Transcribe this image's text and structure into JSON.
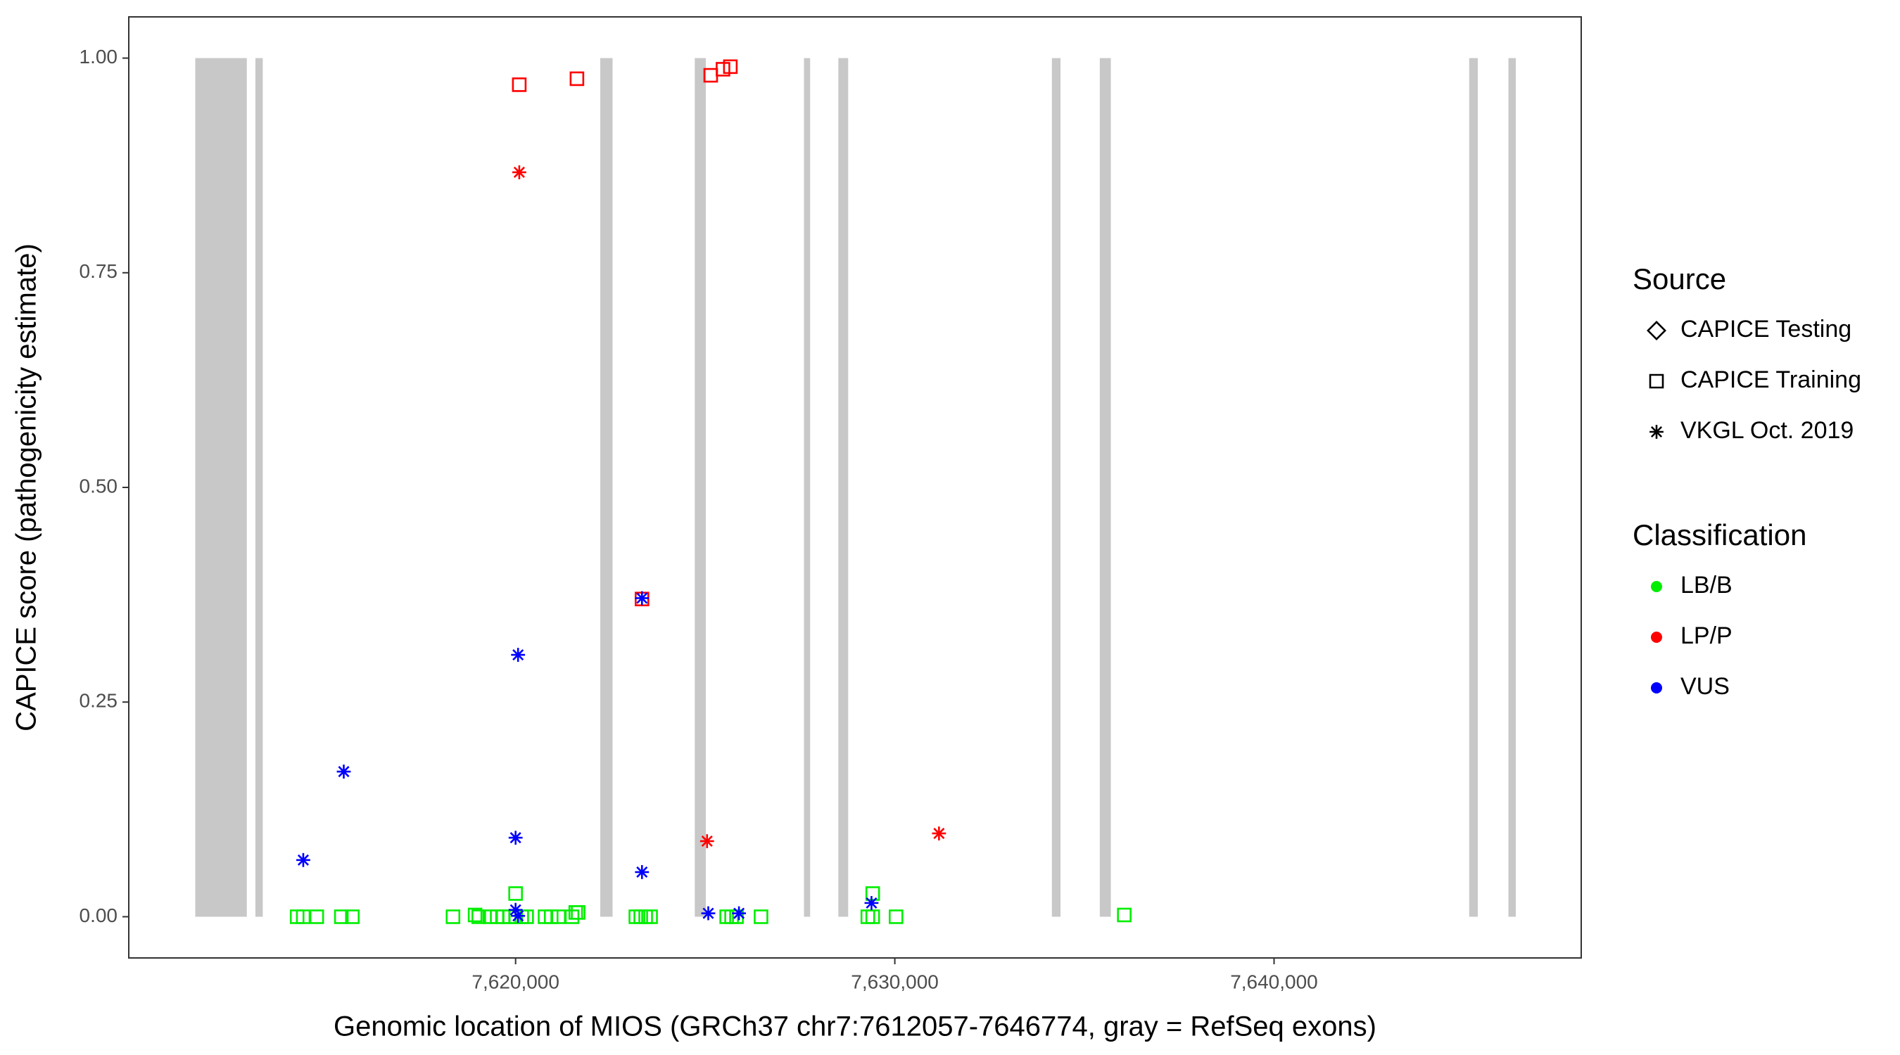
{
  "chart_data": {
    "type": "scatter",
    "x_label": "Genomic location of MIOS (GRCh37 chr7:7612057-7646774, gray = RefSeq exons)",
    "y_label": "CAPICE score (pathogenicity estimate)",
    "xlim": [
      7609800,
      7648100
    ],
    "ylim": [
      -0.048,
      1.048
    ],
    "xticks": [
      {
        "value": 7620000,
        "label": "7,620,000"
      },
      {
        "value": 7630000,
        "label": "7,630,000"
      },
      {
        "value": 7640000,
        "label": "7,640,000"
      }
    ],
    "yticks": [
      {
        "value": 0,
        "label": "0.00"
      },
      {
        "value": 0.25,
        "label": "0.25"
      },
      {
        "value": 0.5,
        "label": "0.50"
      },
      {
        "value": 0.75,
        "label": "0.75"
      },
      {
        "value": 1,
        "label": "1.00"
      }
    ],
    "exon_color": "#c8c8c8",
    "exons": [
      [
        7611553,
        7612913
      ],
      [
        7613139,
        7613333
      ],
      [
        7622233,
        7622557
      ],
      [
        7624725,
        7625016
      ],
      [
        7627605,
        7627767
      ],
      [
        7628511,
        7628770
      ],
      [
        7634142,
        7634369
      ],
      [
        7635405,
        7635696
      ],
      [
        7645146,
        7645372
      ],
      [
        7646181,
        7646375
      ]
    ],
    "legend_source": {
      "title": "Source",
      "items": [
        {
          "label": "CAPICE Testing",
          "shape": "diamond"
        },
        {
          "label": "CAPICE Training",
          "shape": "square"
        },
        {
          "label": "VKGL Oct. 2019",
          "shape": "asterisk"
        }
      ]
    },
    "legend_classification": {
      "title": "Classification",
      "items": [
        {
          "label": "LB/B",
          "color": "#00ee00"
        },
        {
          "label": "LP/P",
          "color": "#ff0000"
        },
        {
          "label": "VUS",
          "color": "#0000ff"
        }
      ]
    },
    "series": [
      {
        "source": "CAPICE Training",
        "classification": "LB/B",
        "x": [
          7614240,
          7614401,
          7614757,
          7615405,
          7615696,
          7618350,
          7618932,
          7619029,
          7619320,
          7619515,
          7619676,
          7619838,
          7620000,
          7620162,
          7620291,
          7620777,
          7620939,
          7621133,
          7621489,
          7621586,
          7621650,
          7623171,
          7623301,
          7623430,
          7623560,
          7625566,
          7625696,
          7625825,
          7626472,
          7629288,
          7629417,
          7630032,
          7636051,
          7620000,
          7629417
        ],
        "values": [
          0,
          0,
          0,
          0,
          0,
          0,
          0.002,
          0,
          0,
          0,
          0,
          0,
          0,
          0,
          0,
          0,
          0,
          0,
          0,
          0.005,
          0.005,
          0,
          0,
          0,
          0,
          0,
          0,
          0,
          0,
          0,
          0,
          0,
          0.002,
          0.027,
          0.027
        ]
      },
      {
        "source": "CAPICE Training",
        "classification": "LP/P",
        "x": [
          7620097,
          7621618,
          7623333,
          7625146,
          7625469,
          7625663
        ],
        "values": [
          0.969,
          0.976,
          0.37,
          0.98,
          0.987,
          0.99
        ]
      },
      {
        "source": "VKGL Oct. 2019",
        "classification": "LP/P",
        "x": [
          7620097,
          7625049,
          7631165
        ],
        "values": [
          0.867,
          0.088,
          0.097
        ]
      },
      {
        "source": "VKGL Oct. 2019",
        "classification": "VUS",
        "x": [
          7614401,
          7615469,
          7620065,
          7620000,
          7623333,
          7623333,
          7625081,
          7625890,
          7629385,
          7620000,
          7620065
        ],
        "values": [
          0.066,
          0.169,
          0.305,
          0.092,
          0.371,
          0.052,
          0.004,
          0.004,
          0.016,
          0.008,
          0.001
        ]
      }
    ]
  }
}
